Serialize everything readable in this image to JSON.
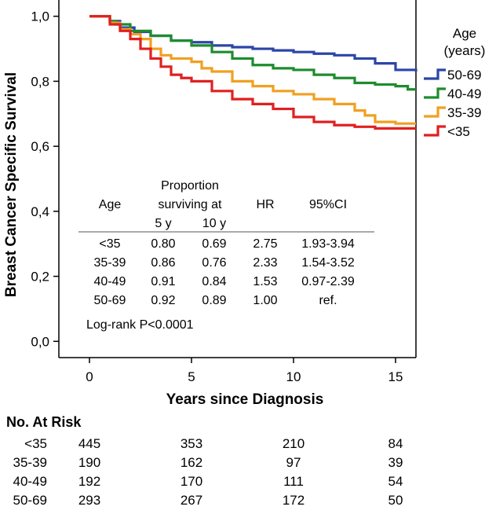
{
  "chart_data": {
    "type": "line",
    "step": true,
    "xlabel": "Years since Diagnosis",
    "ylabel": "Breast Cancer Specific Survival",
    "xlim": [
      -1.5,
      16
    ],
    "ylim": [
      -0.05,
      1.05
    ],
    "x_ticks": [
      0,
      5,
      10,
      15
    ],
    "x_tick_labels": [
      "0",
      "5",
      "10",
      "15"
    ],
    "y_ticks": [
      0,
      0.2,
      0.4,
      0.6,
      0.8,
      1.0
    ],
    "y_tick_labels": [
      "0,0",
      "0,2",
      "0,4",
      "0,6",
      "0,8",
      "1,0"
    ],
    "legend": {
      "title_line1": "Age",
      "title_line2": "(years)",
      "position": "right"
    },
    "series": [
      {
        "name": "50-69",
        "color": "#2b46a8",
        "points": [
          [
            0,
            1.0
          ],
          [
            0.6,
            1.0
          ],
          [
            1.0,
            0.985
          ],
          [
            1.5,
            0.965
          ],
          [
            2.2,
            0.952
          ],
          [
            3.0,
            0.94
          ],
          [
            4.0,
            0.925
          ],
          [
            5.0,
            0.92
          ],
          [
            6.0,
            0.91
          ],
          [
            7.0,
            0.905
          ],
          [
            8.0,
            0.9
          ],
          [
            9.0,
            0.895
          ],
          [
            10.0,
            0.89
          ],
          [
            11.0,
            0.885
          ],
          [
            12.0,
            0.88
          ],
          [
            13.0,
            0.87
          ],
          [
            14.0,
            0.855
          ],
          [
            15.0,
            0.835
          ],
          [
            16.0,
            0.83
          ]
        ]
      },
      {
        "name": "40-49",
        "color": "#1e8c2e",
        "points": [
          [
            0,
            1.0
          ],
          [
            0.6,
            1.0
          ],
          [
            1.0,
            0.985
          ],
          [
            1.3,
            0.975
          ],
          [
            2.0,
            0.955
          ],
          [
            3.0,
            0.94
          ],
          [
            4.0,
            0.925
          ],
          [
            5.0,
            0.91
          ],
          [
            6.0,
            0.89
          ],
          [
            7.0,
            0.87
          ],
          [
            8.0,
            0.85
          ],
          [
            9.0,
            0.84
          ],
          [
            10.0,
            0.835
          ],
          [
            11.0,
            0.82
          ],
          [
            12.0,
            0.81
          ],
          [
            13.0,
            0.795
          ],
          [
            14.0,
            0.79
          ],
          [
            15.0,
            0.785
          ],
          [
            15.6,
            0.775
          ],
          [
            16.0,
            0.775
          ]
        ]
      },
      {
        "name": "35-39",
        "color": "#f0a020",
        "points": [
          [
            0,
            1.0
          ],
          [
            0.7,
            1.0
          ],
          [
            1.0,
            0.98
          ],
          [
            1.5,
            0.96
          ],
          [
            2.0,
            0.945
          ],
          [
            2.5,
            0.93
          ],
          [
            3.0,
            0.9
          ],
          [
            3.5,
            0.88
          ],
          [
            4.0,
            0.87
          ],
          [
            5.0,
            0.86
          ],
          [
            5.5,
            0.84
          ],
          [
            6.0,
            0.83
          ],
          [
            7.0,
            0.8
          ],
          [
            8.0,
            0.785
          ],
          [
            9.0,
            0.77
          ],
          [
            10.0,
            0.76
          ],
          [
            11.0,
            0.745
          ],
          [
            12.0,
            0.73
          ],
          [
            13.0,
            0.71
          ],
          [
            13.5,
            0.695
          ],
          [
            14.0,
            0.675
          ],
          [
            15.0,
            0.67
          ],
          [
            16.0,
            0.67
          ]
        ]
      },
      {
        "name": "<35",
        "color": "#e02020",
        "points": [
          [
            0,
            1.0
          ],
          [
            0.8,
            1.0
          ],
          [
            1.0,
            0.975
          ],
          [
            1.5,
            0.955
          ],
          [
            2.0,
            0.93
          ],
          [
            2.5,
            0.9
          ],
          [
            3.0,
            0.87
          ],
          [
            3.5,
            0.845
          ],
          [
            4.0,
            0.82
          ],
          [
            4.5,
            0.81
          ],
          [
            5.0,
            0.8
          ],
          [
            6.0,
            0.77
          ],
          [
            7.0,
            0.745
          ],
          [
            8.0,
            0.73
          ],
          [
            9.0,
            0.715
          ],
          [
            10.0,
            0.69
          ],
          [
            11.0,
            0.675
          ],
          [
            12.0,
            0.665
          ],
          [
            13.0,
            0.66
          ],
          [
            14.0,
            0.655
          ],
          [
            15.0,
            0.655
          ],
          [
            16.0,
            0.655
          ]
        ]
      }
    ],
    "inset_table": {
      "headers": {
        "age": "Age",
        "proportion_line1": "Proportion",
        "proportion_line2": "surviving at",
        "y5": "5 y",
        "y10": "10 y",
        "hr": "HR",
        "ci": "95%CI"
      },
      "rows": [
        {
          "age": "<35",
          "y5": "0.80",
          "y10": "0.69",
          "hr": "2.75",
          "ci": "1.93-3.94"
        },
        {
          "age": "35-39",
          "y5": "0.86",
          "y10": "0.76",
          "hr": "2.33",
          "ci": "1.54-3.52"
        },
        {
          "age": "40-49",
          "y5": "0.91",
          "y10": "0.84",
          "hr": "1.53",
          "ci": "0.97-2.39"
        },
        {
          "age": "50-69",
          "y5": "0.92",
          "y10": "0.89",
          "hr": "1.00",
          "ci": "ref."
        }
      ],
      "note": "Log-rank P<0.0001"
    },
    "at_risk": {
      "title": "No. At Risk",
      "rows": [
        {
          "label": "<35",
          "values": [
            "445",
            "353",
            "210",
            "84"
          ]
        },
        {
          "label": "35-39",
          "values": [
            "190",
            "162",
            "97",
            "39"
          ]
        },
        {
          "label": "40-49",
          "values": [
            "192",
            "170",
            "111",
            "54"
          ]
        },
        {
          "label": "50-69",
          "values": [
            "293",
            "267",
            "172",
            "50"
          ]
        }
      ]
    }
  }
}
